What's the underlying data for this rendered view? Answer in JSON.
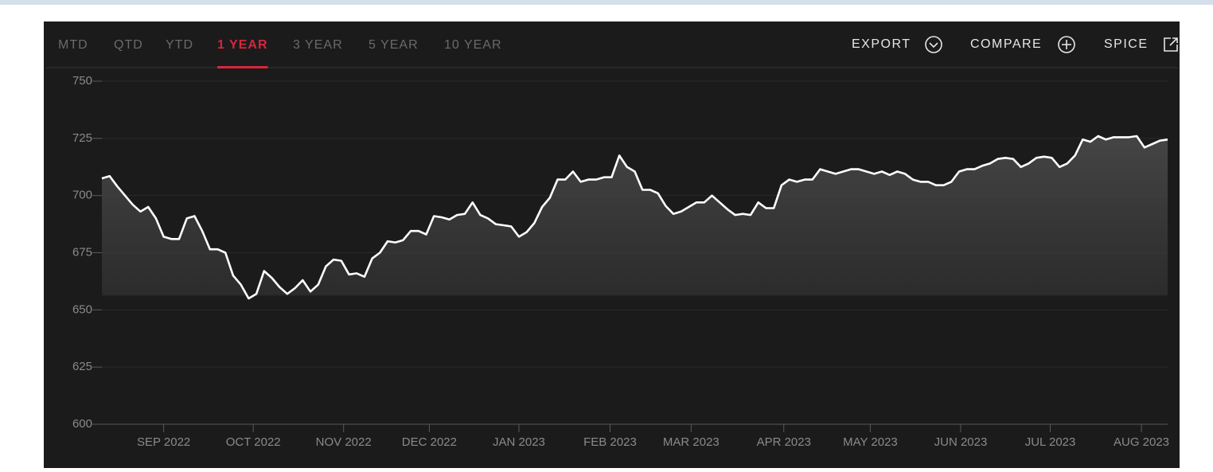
{
  "tabs": [
    "MTD",
    "QTD",
    "YTD",
    "1 YEAR",
    "3 YEAR",
    "5 YEAR",
    "10 YEAR"
  ],
  "active_tab": 3,
  "actions": [
    "EXPORT",
    "COMPARE",
    "SPICE"
  ],
  "chart_data": {
    "type": "line",
    "series": [
      {
        "color": "#ffffff",
        "values": [
          707.5,
          708.5,
          704,
          700,
          696,
          693,
          695,
          690,
          682,
          681,
          681,
          690,
          691,
          684.5,
          676.5,
          676.5,
          675,
          665,
          661,
          655,
          657,
          667,
          664,
          660,
          657,
          659.5,
          663,
          658,
          661,
          669,
          672,
          671.5,
          665.5,
          666,
          664.5,
          672.5,
          675,
          680,
          679.5,
          680.5,
          684.5,
          684.5,
          683,
          691,
          690.5,
          689.5,
          691.5,
          692,
          697,
          691.5,
          690,
          687.5,
          687,
          686.5,
          682,
          684,
          688,
          695,
          699,
          707,
          707,
          710.5,
          706,
          707,
          707,
          708,
          708,
          717.5,
          712.5,
          710.5,
          702.5,
          702.5,
          701,
          695.5,
          692,
          693,
          695,
          697,
          697,
          700,
          697,
          694,
          691.5,
          692,
          691.5,
          697,
          694.5,
          694.5,
          704.5,
          707,
          706,
          707,
          707,
          711.5,
          710.5,
          709.5,
          710.5,
          711.5,
          711.5,
          710.5,
          709.5,
          710.5,
          709,
          710.5,
          709.5,
          707,
          706,
          706,
          704.5,
          704.5,
          706,
          710.5,
          711.5,
          711.5,
          713,
          714,
          716,
          716.5,
          716,
          712.5,
          714,
          716.5,
          717,
          716.5,
          712.5,
          714,
          717.5,
          724.5,
          723.5,
          726,
          724.5,
          725.5,
          725.5,
          725.5,
          726,
          721,
          722.5,
          724,
          724.5
        ]
      }
    ],
    "xlim": [
      0,
      138
    ],
    "xticks": [
      {
        "value": 8,
        "label": "SEP 2022"
      },
      {
        "value": 19.6,
        "label": "OCT 2022"
      },
      {
        "value": 31.3,
        "label": "NOV 2022"
      },
      {
        "value": 42.4,
        "label": "DEC 2022"
      },
      {
        "value": 54,
        "label": "JAN 2023"
      },
      {
        "value": 65.8,
        "label": "FEB 2023"
      },
      {
        "value": 76.3,
        "label": "MAR 2023"
      },
      {
        "value": 88.3,
        "label": "APR 2023"
      },
      {
        "value": 99.5,
        "label": "MAY 2023"
      },
      {
        "value": 111.2,
        "label": "JUN 2023"
      },
      {
        "value": 122.8,
        "label": "JUL 2023"
      },
      {
        "value": 134.6,
        "label": "AUG 2023"
      }
    ],
    "ylim": [
      600,
      750
    ],
    "yticks": [
      600,
      625,
      650,
      675,
      700,
      725,
      750
    ],
    "grid": true
  }
}
